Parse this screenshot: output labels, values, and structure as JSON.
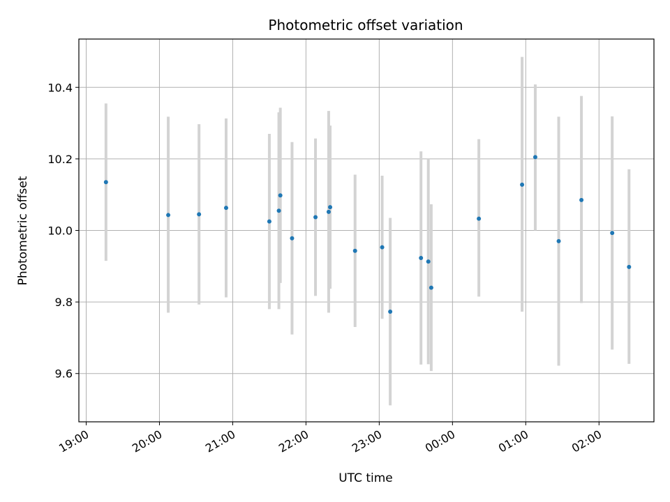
{
  "chart_data": {
    "type": "scatter",
    "title": "Photometric offset variation",
    "xlabel": "UTC time",
    "ylabel": "Photometric offset",
    "x_type": "time",
    "x_unit": "hours",
    "xlim": [
      18.9,
      26.75
    ],
    "ylim": [
      9.465,
      10.535
    ],
    "x_ticks": [
      {
        "value": 19,
        "label": "19:00"
      },
      {
        "value": 20,
        "label": "20:00"
      },
      {
        "value": 21,
        "label": "21:00"
      },
      {
        "value": 22,
        "label": "22:00"
      },
      {
        "value": 23,
        "label": "23:00"
      },
      {
        "value": 24,
        "label": "00:00"
      },
      {
        "value": 25,
        "label": "01:00"
      },
      {
        "value": 26,
        "label": "02:00"
      }
    ],
    "y_ticks": [
      {
        "value": 9.6,
        "label": "9.6"
      },
      {
        "value": 9.8,
        "label": "9.8"
      },
      {
        "value": 10.0,
        "label": "10.0"
      },
      {
        "value": 10.2,
        "label": "10.2"
      },
      {
        "value": 10.4,
        "label": "10.4"
      }
    ],
    "grid": true,
    "colors": {
      "point": "#1f77b4",
      "errorbar": "#d3d3d3",
      "grid": "#b0b0b0"
    },
    "points": [
      {
        "x": 19.27,
        "y": 10.135,
        "ylo": 9.915,
        "yhi": 10.355
      },
      {
        "x": 20.12,
        "y": 10.043,
        "ylo": 9.77,
        "yhi": 10.318
      },
      {
        "x": 20.54,
        "y": 10.045,
        "ylo": 9.793,
        "yhi": 10.297
      },
      {
        "x": 20.91,
        "y": 10.063,
        "ylo": 9.813,
        "yhi": 10.313
      },
      {
        "x": 21.5,
        "y": 10.025,
        "ylo": 9.78,
        "yhi": 10.27
      },
      {
        "x": 21.63,
        "y": 10.055,
        "ylo": 9.78,
        "yhi": 10.33
      },
      {
        "x": 21.65,
        "y": 10.098,
        "ylo": 9.853,
        "yhi": 10.343
      },
      {
        "x": 21.81,
        "y": 9.978,
        "ylo": 9.709,
        "yhi": 10.247
      },
      {
        "x": 22.13,
        "y": 10.037,
        "ylo": 9.817,
        "yhi": 10.257
      },
      {
        "x": 22.31,
        "y": 10.052,
        "ylo": 9.77,
        "yhi": 10.334
      },
      {
        "x": 22.33,
        "y": 10.065,
        "ylo": 9.837,
        "yhi": 10.293
      },
      {
        "x": 22.67,
        "y": 9.943,
        "ylo": 9.73,
        "yhi": 10.156
      },
      {
        "x": 23.04,
        "y": 9.953,
        "ylo": 9.753,
        "yhi": 10.153
      },
      {
        "x": 23.15,
        "y": 9.773,
        "ylo": 9.511,
        "yhi": 10.035
      },
      {
        "x": 23.57,
        "y": 9.923,
        "ylo": 9.625,
        "yhi": 10.221
      },
      {
        "x": 23.67,
        "y": 9.913,
        "ylo": 9.626,
        "yhi": 10.2
      },
      {
        "x": 23.71,
        "y": 9.84,
        "ylo": 9.607,
        "yhi": 10.073
      },
      {
        "x": 24.36,
        "y": 10.033,
        "ylo": 9.815,
        "yhi": 10.255
      },
      {
        "x": 24.95,
        "y": 10.128,
        "ylo": 9.773,
        "yhi": 10.485
      },
      {
        "x": 25.13,
        "y": 10.205,
        "ylo": 10.0,
        "yhi": 10.408
      },
      {
        "x": 25.45,
        "y": 9.97,
        "ylo": 9.622,
        "yhi": 10.318
      },
      {
        "x": 25.76,
        "y": 10.085,
        "ylo": 9.797,
        "yhi": 10.376
      },
      {
        "x": 26.18,
        "y": 9.993,
        "ylo": 9.667,
        "yhi": 10.319
      },
      {
        "x": 26.41,
        "y": 9.898,
        "ylo": 9.627,
        "yhi": 10.171
      }
    ]
  }
}
